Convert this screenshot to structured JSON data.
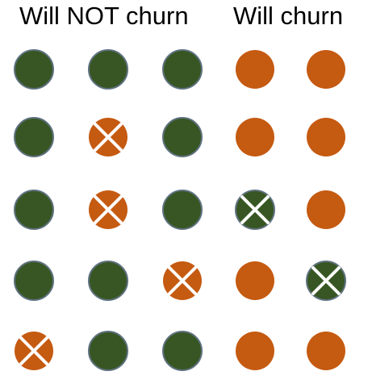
{
  "headings": {
    "not_churn": "Will NOT churn",
    "churn": "Will churn"
  },
  "colors": {
    "not_churn": "#375623",
    "churn": "#C55A11",
    "outline": "#5f7280",
    "cross": "#ffffff"
  },
  "grid": {
    "rows": [
      [
        {
          "cls": "not_churn",
          "x": false
        },
        {
          "cls": "not_churn",
          "x": false
        },
        {
          "cls": "not_churn",
          "x": false
        },
        {
          "cls": "churn",
          "x": false
        },
        {
          "cls": "churn",
          "x": false
        }
      ],
      [
        {
          "cls": "not_churn",
          "x": false
        },
        {
          "cls": "churn",
          "x": true
        },
        {
          "cls": "not_churn",
          "x": false
        },
        {
          "cls": "churn",
          "x": false
        },
        {
          "cls": "churn",
          "x": false
        }
      ],
      [
        {
          "cls": "not_churn",
          "x": false
        },
        {
          "cls": "churn",
          "x": true
        },
        {
          "cls": "not_churn",
          "x": false
        },
        {
          "cls": "not_churn",
          "x": true
        },
        {
          "cls": "churn",
          "x": false
        }
      ],
      [
        {
          "cls": "not_churn",
          "x": false
        },
        {
          "cls": "not_churn",
          "x": false
        },
        {
          "cls": "churn",
          "x": true
        },
        {
          "cls": "churn",
          "x": false
        },
        {
          "cls": "not_churn",
          "x": true
        }
      ],
      [
        {
          "cls": "churn",
          "x": true
        },
        {
          "cls": "not_churn",
          "x": false
        },
        {
          "cls": "not_churn",
          "x": false
        },
        {
          "cls": "churn",
          "x": false
        },
        {
          "cls": "churn",
          "x": false
        }
      ]
    ]
  }
}
